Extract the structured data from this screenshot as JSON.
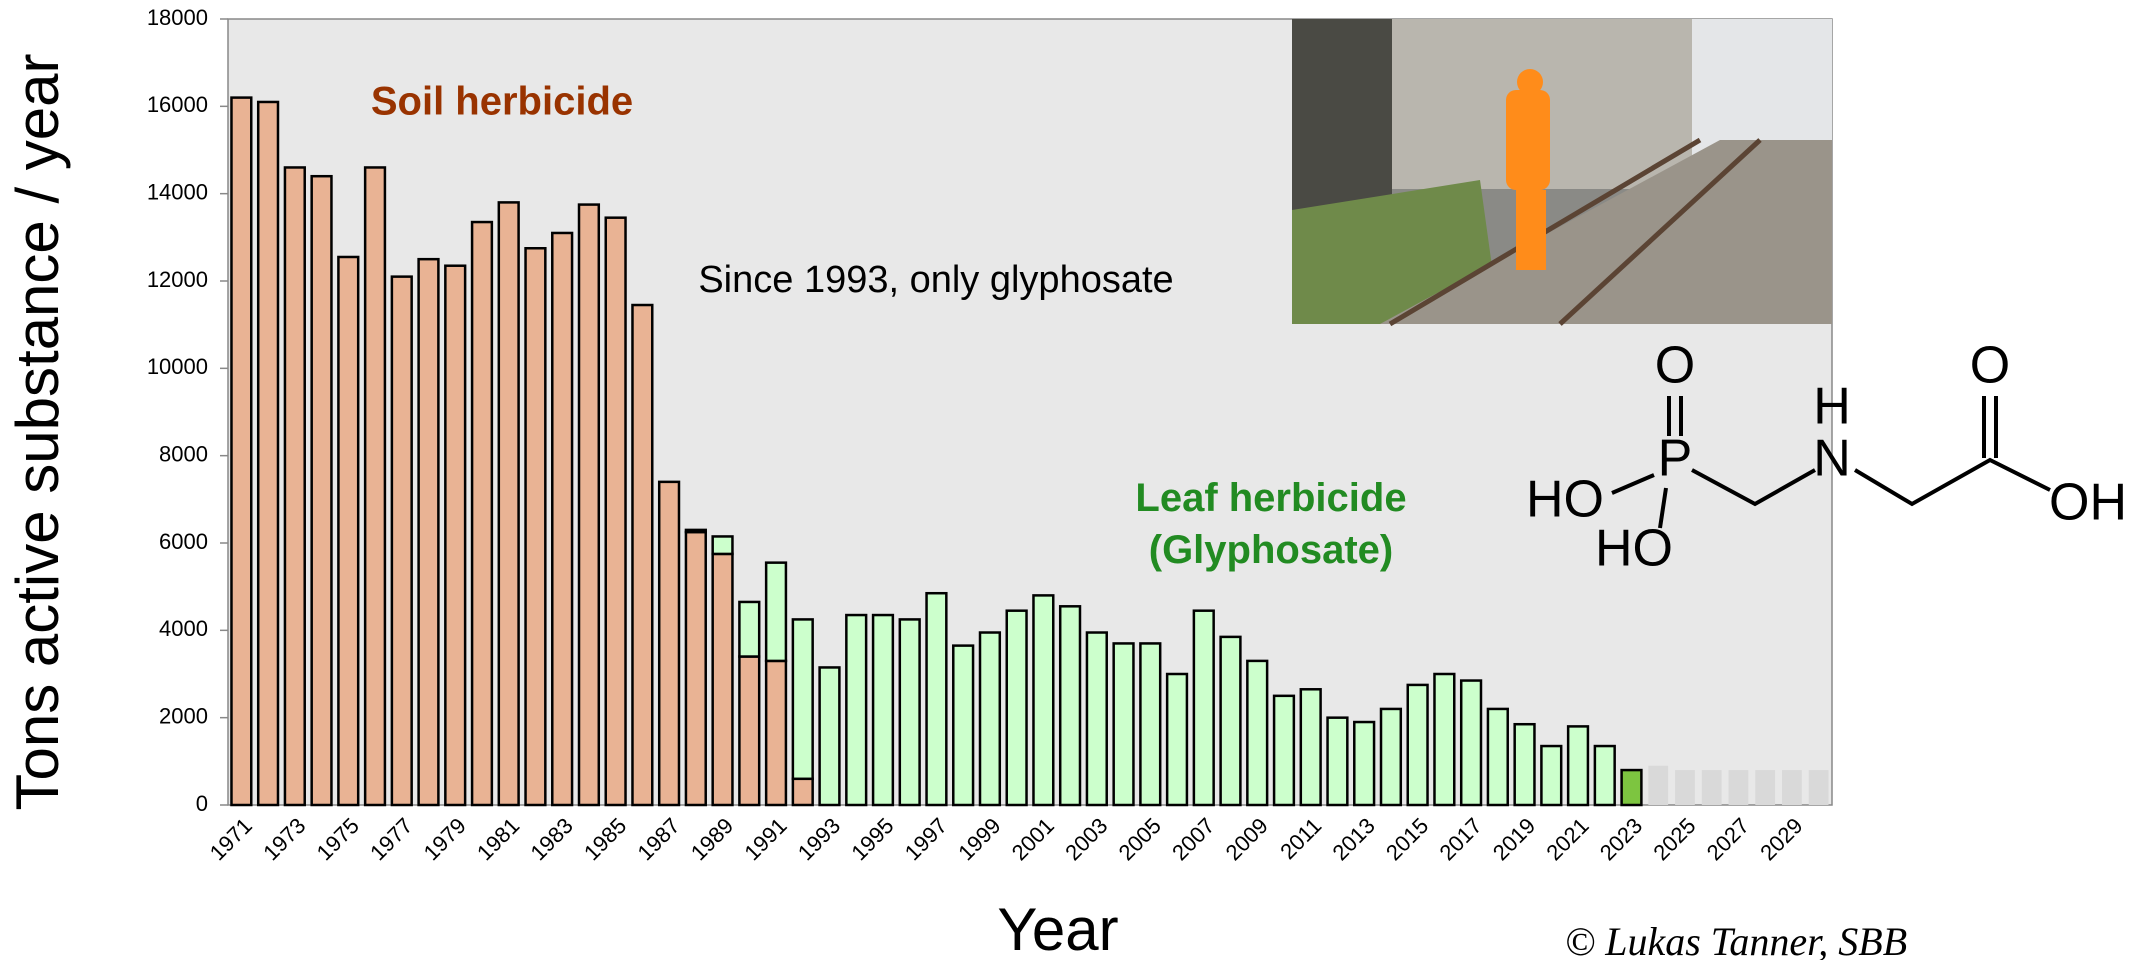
{
  "chart_data": {
    "type": "stacked_bar",
    "ylabel": "Tons active substance / year",
    "xlabel": "Year",
    "categories": [
      "1971",
      null,
      "1973",
      null,
      "1975",
      null,
      "1977",
      null,
      "1979",
      null,
      "1981",
      null,
      "1983",
      null,
      "1985",
      null,
      "1987",
      null,
      "1989",
      null,
      "1991",
      null,
      "1993",
      null,
      "1995",
      null,
      "1997",
      null,
      "1999",
      null,
      "2001",
      null,
      "2003",
      null,
      "2005",
      null,
      "2007",
      null,
      "2009",
      null,
      "2011",
      null,
      "2013",
      null,
      "2015",
      null,
      "2017",
      null,
      "2019",
      null,
      "2021",
      null,
      "2023",
      null,
      "2025",
      null,
      "2027",
      null,
      "2029",
      null
    ],
    "series": [
      {
        "name": "Soil herbicide",
        "color": "#e9b394",
        "label_color": "#993300",
        "edgecolor": "#000000",
        "values": [
          16200,
          16100,
          14600,
          14400,
          12550,
          14600,
          12100,
          12500,
          12350,
          13350,
          13800,
          12750,
          13100,
          13750,
          13450,
          11450,
          7400,
          6250,
          5750,
          3400,
          3300,
          600,
          null,
          null,
          null,
          null,
          null,
          null,
          null,
          null,
          null,
          null,
          null,
          null,
          null,
          null,
          null,
          null,
          null,
          null,
          null,
          null,
          null,
          null,
          null,
          null,
          null,
          null,
          null,
          null,
          null,
          null,
          null,
          null,
          null,
          null,
          null,
          null,
          null,
          null
        ]
      },
      {
        "name": "Leaf herbicide (Glyphosate)",
        "color": "#ccffcc",
        "label_color": "#228b22",
        "edgecolor": "#000000",
        "colors": [
          "#ccffcc",
          "#ccffcc",
          "#ccffcc",
          "#ccffcc",
          "#ccffcc",
          "#ccffcc",
          "#ccffcc",
          "#ccffcc",
          "#ccffcc",
          "#ccffcc",
          "#ccffcc",
          "#ccffcc",
          "#ccffcc",
          "#ccffcc",
          "#ccffcc",
          "#ccffcc",
          "#ccffcc",
          "#ccffcc",
          "#ccffcc",
          "#ccffcc",
          "#ccffcc",
          "#ccffcc",
          "#ccffcc",
          "#ccffcc",
          "#ccffcc",
          "#ccffcc",
          "#ccffcc",
          "#ccffcc",
          "#ccffcc",
          "#ccffcc",
          "#ccffcc",
          "#ccffcc",
          "#ccffcc",
          "#ccffcc",
          "#ccffcc",
          "#ccffcc",
          "#ccffcc",
          "#ccffcc",
          "#ccffcc",
          "#ccffcc",
          "#ccffcc",
          "#ccffcc",
          "#ccffcc",
          "#ccffcc",
          "#ccffcc",
          "#ccffcc",
          "#ccffcc",
          "#ccffcc",
          "#ccffcc",
          "#ccffcc",
          "#ccffcc",
          "#ccffcc",
          "#7dc540",
          "#ccffcc",
          "#ccffcc",
          "#ccffcc",
          "#ccffcc",
          "#ccffcc",
          "#ccffcc",
          "#ccffcc"
        ],
        "values": [
          null,
          null,
          null,
          null,
          null,
          null,
          null,
          null,
          null,
          null,
          null,
          null,
          null,
          null,
          null,
          null,
          null,
          50,
          400,
          1250,
          2250,
          3650,
          3150,
          4350,
          4350,
          4250,
          4850,
          3650,
          3950,
          4450,
          4800,
          4550,
          3950,
          3700,
          3700,
          3000,
          4450,
          3850,
          3300,
          2500,
          2650,
          2000,
          1900,
          2200,
          2750,
          3000,
          2850,
          2200,
          1850,
          1350,
          1800,
          1350,
          800,
          null,
          null,
          null,
          null,
          null,
          null,
          null
        ]
      },
      {
        "color": "#d9d9d9",
        "edgecolor": null,
        "values": [
          null,
          null,
          null,
          null,
          null,
          null,
          null,
          null,
          null,
          null,
          null,
          null,
          null,
          null,
          null,
          null,
          null,
          null,
          null,
          null,
          null,
          null,
          null,
          null,
          null,
          null,
          null,
          null,
          null,
          null,
          null,
          null,
          null,
          null,
          null,
          null,
          null,
          null,
          null,
          null,
          null,
          null,
          null,
          null,
          null,
          null,
          null,
          null,
          null,
          null,
          null,
          null,
          null,
          900,
          800,
          800,
          800,
          800,
          800,
          800
        ]
      }
    ],
    "ylim": [
      0,
      18000
    ],
    "yticks": [
      0,
      2000,
      4000,
      6000,
      8000,
      10000,
      12000,
      14000,
      16000,
      18000
    ],
    "background": "#e8e8e8",
    "annotations": [
      "Since 1993, only glyphosate"
    ]
  },
  "credit": "© Lukas Tanner, SBB",
  "molecule": {
    "labels": [
      "O",
      "P",
      "H",
      "N",
      "HO",
      "HO",
      "O",
      "OH"
    ]
  }
}
